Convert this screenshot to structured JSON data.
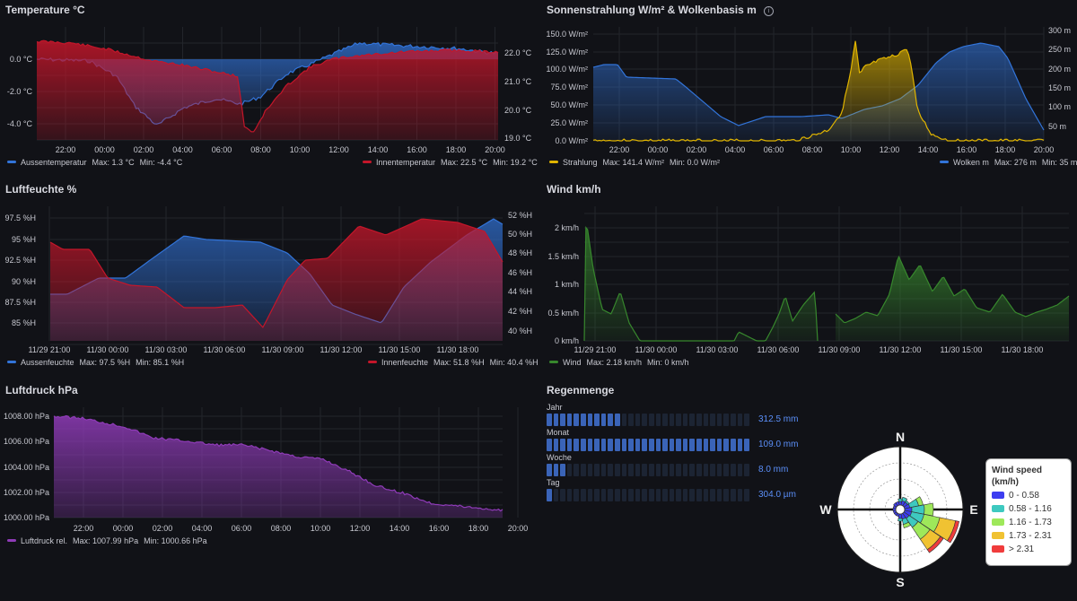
{
  "panels": {
    "temperature": {
      "title": "Temperature °C",
      "left_axis": [
        "0.0 °C",
        "-2.0 °C",
        "-4.0 °C"
      ],
      "right_axis": [
        "22.0 °C",
        "21.0 °C",
        "20.0 °C",
        "19.0 °C"
      ],
      "x_ticks": [
        "22:00",
        "00:00",
        "02:00",
        "04:00",
        "06:00",
        "08:00",
        "10:00",
        "12:00",
        "14:00",
        "16:00",
        "18:00",
        "20:00"
      ],
      "legend_left": {
        "name": "Aussentemperatur",
        "max": "Max: 1.3 °C",
        "min": "Min: -4.4 °C",
        "color": "#3274d9"
      },
      "legend_right": {
        "name": "Innentemperatur",
        "max": "Max: 22.5 °C",
        "min": "Min: 19.2 °C",
        "color": "#c4162a"
      }
    },
    "sun": {
      "title": "Sonnenstrahlung W/m² & Wolkenbasis m",
      "left_axis": [
        "150.0 W/m²",
        "125.0 W/m²",
        "100.0 W/m²",
        "75.0 W/m²",
        "50.0 W/m²",
        "25.0 W/m²",
        "0.0 W/m²"
      ],
      "right_axis": [
        "300 m",
        "250 m",
        "200 m",
        "150 m",
        "100 m",
        "50 m"
      ],
      "x_ticks": [
        "22:00",
        "00:00",
        "02:00",
        "04:00",
        "06:00",
        "08:00",
        "10:00",
        "12:00",
        "14:00",
        "16:00",
        "18:00",
        "20:00"
      ],
      "legend_left": {
        "name": "Strahlung",
        "max": "Max: 141.4 W/m²",
        "min": "Min: 0.0 W/m²",
        "color": "#e0b400"
      },
      "legend_right": {
        "name": "Wolken m",
        "max": "Max: 276 m",
        "min": "Min: 35 m",
        "color": "#3274d9"
      }
    },
    "humidity": {
      "title": "Luftfeuchte %",
      "left_axis": [
        "97.5 %H",
        "95 %H",
        "92.5 %H",
        "90 %H",
        "87.5 %H",
        "85 %H"
      ],
      "right_axis": [
        "52 %H",
        "50 %H",
        "48 %H",
        "46 %H",
        "44 %H",
        "42 %H",
        "40 %H"
      ],
      "x_ticks": [
        "11/29 21:00",
        "11/30 00:00",
        "11/30 03:00",
        "11/30 06:00",
        "11/30 09:00",
        "11/30 12:00",
        "11/30 15:00",
        "11/30 18:00"
      ],
      "legend_left": {
        "name": "Aussenfeuchte",
        "max": "Max: 97.5 %H",
        "min": "Min: 85.1 %H",
        "color": "#3274d9"
      },
      "legend_right": {
        "name": "Innenfeuchte",
        "max": "Max: 51.8 %H",
        "min": "Min: 40.4 %H",
        "color": "#c4162a"
      }
    },
    "wind": {
      "title": "Wind km/h",
      "left_axis": [
        "2 km/h",
        "1.5 km/h",
        "1 km/h",
        "0.5 km/h",
        "0 km/h"
      ],
      "x_ticks": [
        "11/29 21:00",
        "11/30 00:00",
        "11/30 03:00",
        "11/30 06:00",
        "11/30 09:00",
        "11/30 12:00",
        "11/30 15:00",
        "11/30 18:00"
      ],
      "legend": {
        "name": "Wind",
        "max": "Max: 2.18 km/h",
        "min": "Min: 0 km/h",
        "color": "#37872d"
      }
    },
    "pressure": {
      "title": "Luftdruck hPa",
      "left_axis": [
        "1008.00 hPa",
        "1006.00 hPa",
        "1004.00 hPa",
        "1002.00 hPa",
        "1000.00 hPa"
      ],
      "x_ticks": [
        "22:00",
        "00:00",
        "02:00",
        "04:00",
        "06:00",
        "08:00",
        "10:00",
        "12:00",
        "14:00",
        "16:00",
        "18:00",
        "20:00"
      ],
      "legend": {
        "name": "Luftdruck rel.",
        "max": "Max: 1007.99 hPa",
        "min": "Min: 1000.66 hPa",
        "color": "#8f3bb8"
      }
    },
    "rain": {
      "title": "Regenmenge",
      "rows": [
        {
          "label": "Jahr",
          "value": "312.5 mm",
          "fill": 0.37
        },
        {
          "label": "Monat",
          "value": "109.0 mm",
          "fill": 1.0
        },
        {
          "label": "Woche",
          "value": "8.0 mm",
          "fill": 0.1
        },
        {
          "label": "Tag",
          "value": "304.0 µm",
          "fill": 0.02
        }
      ]
    },
    "windrose": {
      "directions": {
        "n": "N",
        "e": "E",
        "s": "S",
        "w": "W"
      },
      "legend_title": "Wind speed (km/h)",
      "legend_items": [
        {
          "label": "0 - 0.58",
          "color": "#3d3df0"
        },
        {
          "label": "0.58 - 1.16",
          "color": "#3ec9c0"
        },
        {
          "label": "1.16 - 1.73",
          "color": "#9ee85a"
        },
        {
          "label": "1.73 - 2.31",
          "color": "#f0c232"
        },
        {
          "label": "> 2.31",
          "color": "#f03c3c"
        }
      ]
    }
  }
}
